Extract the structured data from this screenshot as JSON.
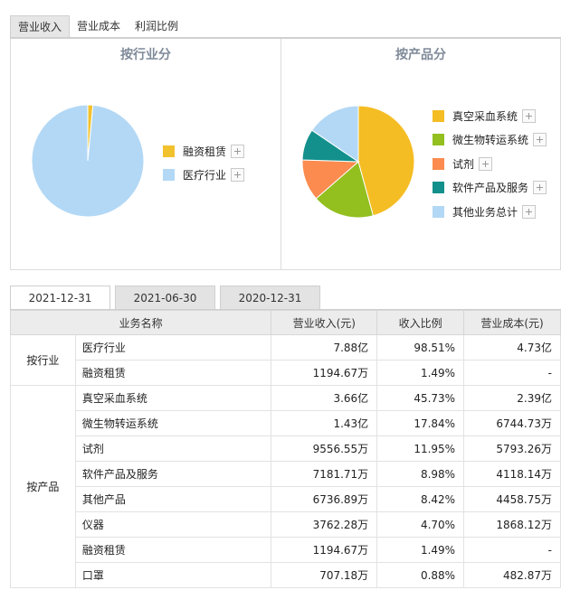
{
  "top_tabs": [
    {
      "label": "营业收入",
      "active": true
    },
    {
      "label": "营业成本",
      "active": false
    },
    {
      "label": "利润比例",
      "active": false
    }
  ],
  "industry_chart": {
    "title": "按行业分",
    "chart_data": {
      "type": "pie",
      "slices": [
        {
          "label": "融资租赁",
          "value": 1.49,
          "color": "#f2c12e"
        },
        {
          "label": "医疗行业",
          "value": 98.51,
          "color": "#b3d8f5"
        }
      ]
    },
    "legend": [
      {
        "label": "融资租赁",
        "color": "#f2c12e"
      },
      {
        "label": "医疗行业",
        "color": "#b3d8f5"
      }
    ]
  },
  "product_chart": {
    "title": "按产品分",
    "chart_data": {
      "type": "pie",
      "slices": [
        {
          "label": "真空采血系统",
          "value": 45.73,
          "color": "#f5bd24"
        },
        {
          "label": "微生物转运系统",
          "value": 17.84,
          "color": "#93bf1f"
        },
        {
          "label": "试剂",
          "value": 11.95,
          "color": "#fb8b4e"
        },
        {
          "label": "软件产品及服务",
          "value": 8.98,
          "color": "#13908c"
        },
        {
          "label": "其他业务总计",
          "value": 15.5,
          "color": "#b3d8f5"
        }
      ]
    },
    "legend": [
      {
        "label": "真空采血系统",
        "color": "#f5bd24"
      },
      {
        "label": "微生物转运系统",
        "color": "#93bf1f"
      },
      {
        "label": "试剂",
        "color": "#fb8b4e"
      },
      {
        "label": "软件产品及服务",
        "color": "#13908c"
      },
      {
        "label": "其他业务总计",
        "color": "#b3d8f5"
      }
    ]
  },
  "date_tabs": [
    {
      "label": "2021-12-31",
      "active": true
    },
    {
      "label": "2021-06-30",
      "active": false
    },
    {
      "label": "2020-12-31",
      "active": false
    }
  ],
  "table": {
    "headers": [
      "业务名称",
      "营业收入(元)",
      "收入比例",
      "营业成本(元)"
    ],
    "groups": [
      {
        "label": "按行业",
        "rows": [
          {
            "name": "医疗行业",
            "revenue": "7.88亿",
            "ratio": "98.51%",
            "cost": "4.73亿"
          },
          {
            "name": "融资租赁",
            "revenue": "1194.67万",
            "ratio": "1.49%",
            "cost": "-"
          }
        ]
      },
      {
        "label": "按产品",
        "rows": [
          {
            "name": "真空采血系统",
            "revenue": "3.66亿",
            "ratio": "45.73%",
            "cost": "2.39亿"
          },
          {
            "name": "微生物转运系统",
            "revenue": "1.43亿",
            "ratio": "17.84%",
            "cost": "6744.73万"
          },
          {
            "name": "试剂",
            "revenue": "9556.55万",
            "ratio": "11.95%",
            "cost": "5793.26万"
          },
          {
            "name": "软件产品及服务",
            "revenue": "7181.71万",
            "ratio": "8.98%",
            "cost": "4118.14万"
          },
          {
            "name": "其他产品",
            "revenue": "6736.89万",
            "ratio": "8.42%",
            "cost": "4458.75万"
          },
          {
            "name": "仪器",
            "revenue": "3762.28万",
            "ratio": "4.70%",
            "cost": "1868.12万"
          },
          {
            "name": "融资租赁",
            "revenue": "1194.67万",
            "ratio": "1.49%",
            "cost": "-"
          },
          {
            "name": "口罩",
            "revenue": "707.18万",
            "ratio": "0.88%",
            "cost": "482.87万"
          }
        ]
      }
    ]
  }
}
